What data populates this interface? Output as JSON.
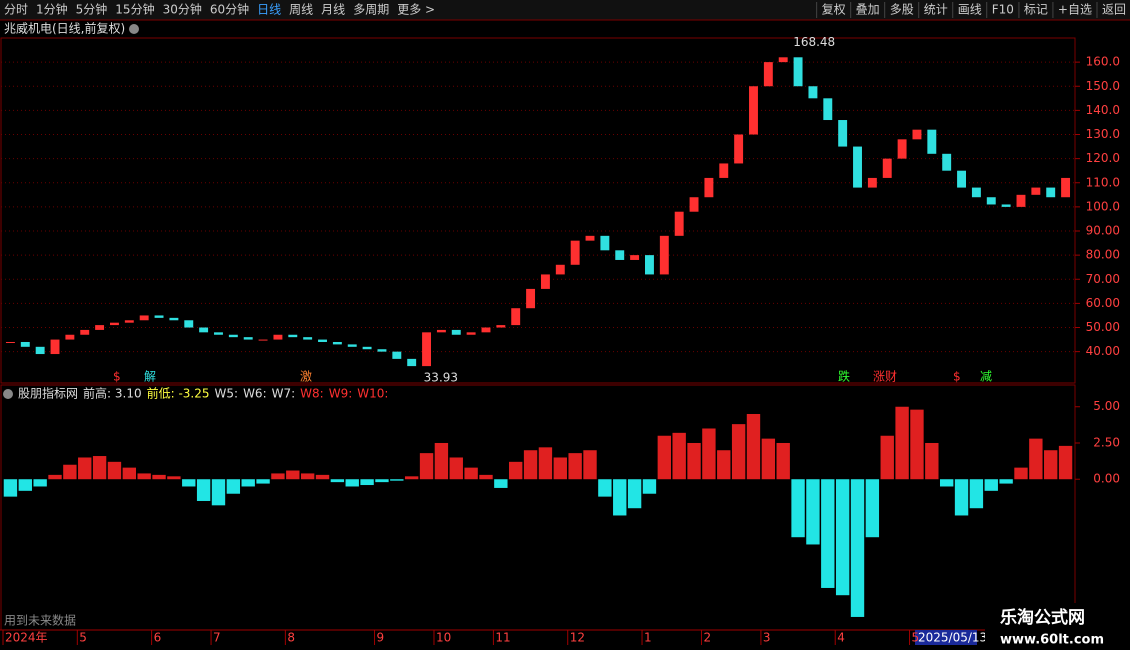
{
  "toolbar": {
    "left": [
      "分时",
      "1分钟",
      "5分钟",
      "15分钟",
      "30分钟",
      "60分钟",
      "日线",
      "周线",
      "月线",
      "多周期",
      "更多 >"
    ],
    "right": [
      "复权",
      "叠加",
      "多股",
      "统计",
      "画线",
      "F10",
      "标记",
      "+自选",
      "返回"
    ]
  },
  "stock_title": "兆威机电(日线,前复权)",
  "signals": [
    "$",
    "解",
    "激",
    "跌",
    "涨财",
    "$",
    "减"
  ],
  "indicator_header": [
    "股朋指标网",
    "前高: 3.10",
    "前低: -3.25",
    "W5:",
    "W6:",
    "W7:",
    "W8:",
    "W9:",
    "W10:"
  ],
  "footer_note": "用到未来数据",
  "cursor_date": "2025/05/13",
  "watermark": [
    "乐淘公式网",
    "www.60lt.com"
  ],
  "chart_data": [
    {
      "type": "candlestick",
      "high_label": "168.48",
      "low_label": "33.93",
      "values": [
        44,
        42,
        39,
        45,
        47,
        49,
        51,
        52,
        53,
        55,
        54,
        53,
        50,
        48,
        47,
        46,
        45,
        45,
        47,
        46,
        45,
        44,
        43,
        42,
        41,
        40,
        37,
        34,
        48,
        49,
        47,
        48,
        50,
        51,
        58,
        66,
        72,
        76,
        86,
        88,
        82,
        78,
        80,
        72,
        88,
        98,
        104,
        112,
        118,
        130,
        150,
        160,
        162,
        150,
        145,
        136,
        125,
        108,
        112,
        120,
        128,
        132,
        122,
        115,
        108,
        104,
        101,
        100,
        105,
        108,
        104,
        112
      ],
      "up_color": "#ff3030",
      "down_color": "#30e0e0",
      "ylim": [
        27,
        170
      ],
      "yticks": [
        {
          "value": 40,
          "label": "40.00"
        },
        {
          "value": 50,
          "label": "50.00"
        },
        {
          "value": 60,
          "label": "60.00"
        },
        {
          "value": 70,
          "label": "70.00"
        },
        {
          "value": 80,
          "label": "80.00"
        },
        {
          "value": 90,
          "label": "90.00"
        },
        {
          "value": 100,
          "label": "100.0"
        },
        {
          "value": 110,
          "label": "110.0"
        },
        {
          "value": 120,
          "label": "120.0"
        },
        {
          "value": 130,
          "label": "130.0"
        },
        {
          "value": 140,
          "label": "140.0"
        },
        {
          "value": 150,
          "label": "150.0"
        },
        {
          "value": 160,
          "label": "160.0"
        }
      ],
      "grid": true
    },
    {
      "type": "bar",
      "categories": [
        "2024年",
        null,
        null,
        null,
        null,
        "5",
        null,
        null,
        null,
        null,
        "6",
        null,
        null,
        null,
        "7",
        null,
        null,
        null,
        null,
        "8",
        null,
        null,
        null,
        null,
        null,
        "9",
        null,
        null,
        null,
        "10",
        null,
        null,
        null,
        "11",
        null,
        null,
        null,
        null,
        "12",
        null,
        null,
        null,
        null,
        "1",
        null,
        null,
        null,
        "2",
        null,
        null,
        null,
        "3",
        null,
        null,
        null,
        null,
        "4",
        null,
        null,
        null,
        null,
        "5",
        null,
        null,
        null,
        null,
        null,
        null,
        null,
        null,
        null,
        null
      ],
      "values": [
        -1.2,
        -0.8,
        -0.5,
        0.3,
        1.0,
        1.5,
        1.6,
        1.2,
        0.8,
        0.4,
        0.3,
        0.2,
        -0.5,
        -1.5,
        -1.8,
        -1.0,
        -0.5,
        -0.3,
        0.4,
        0.6,
        0.4,
        0.3,
        -0.2,
        -0.5,
        -0.4,
        -0.2,
        -0.1,
        0.2,
        1.8,
        2.5,
        1.5,
        0.8,
        0.3,
        -0.6,
        1.2,
        2.0,
        2.2,
        1.5,
        1.8,
        2.0,
        -1.2,
        -2.5,
        -2.0,
        -1.0,
        3.0,
        3.2,
        2.5,
        3.5,
        2.0,
        3.8,
        4.5,
        2.8,
        2.5,
        -4.0,
        -4.5,
        -7.5,
        -8.0,
        -9.5,
        -4.0,
        3.0,
        5.0,
        4.8,
        2.5,
        -0.5,
        -2.5,
        -2.0,
        -0.8,
        -0.3,
        0.8,
        2.8,
        2.0,
        2.3
      ],
      "pos_color": "#e02020",
      "neg_color": "#22e5e5",
      "ylim": [
        -10.4,
        6.5
      ],
      "yticks": [
        {
          "value": 5,
          "label": "5.00"
        },
        {
          "value": 2.5,
          "label": "2.50"
        },
        {
          "value": 0,
          "label": "0.00"
        }
      ],
      "grid": false
    }
  ]
}
